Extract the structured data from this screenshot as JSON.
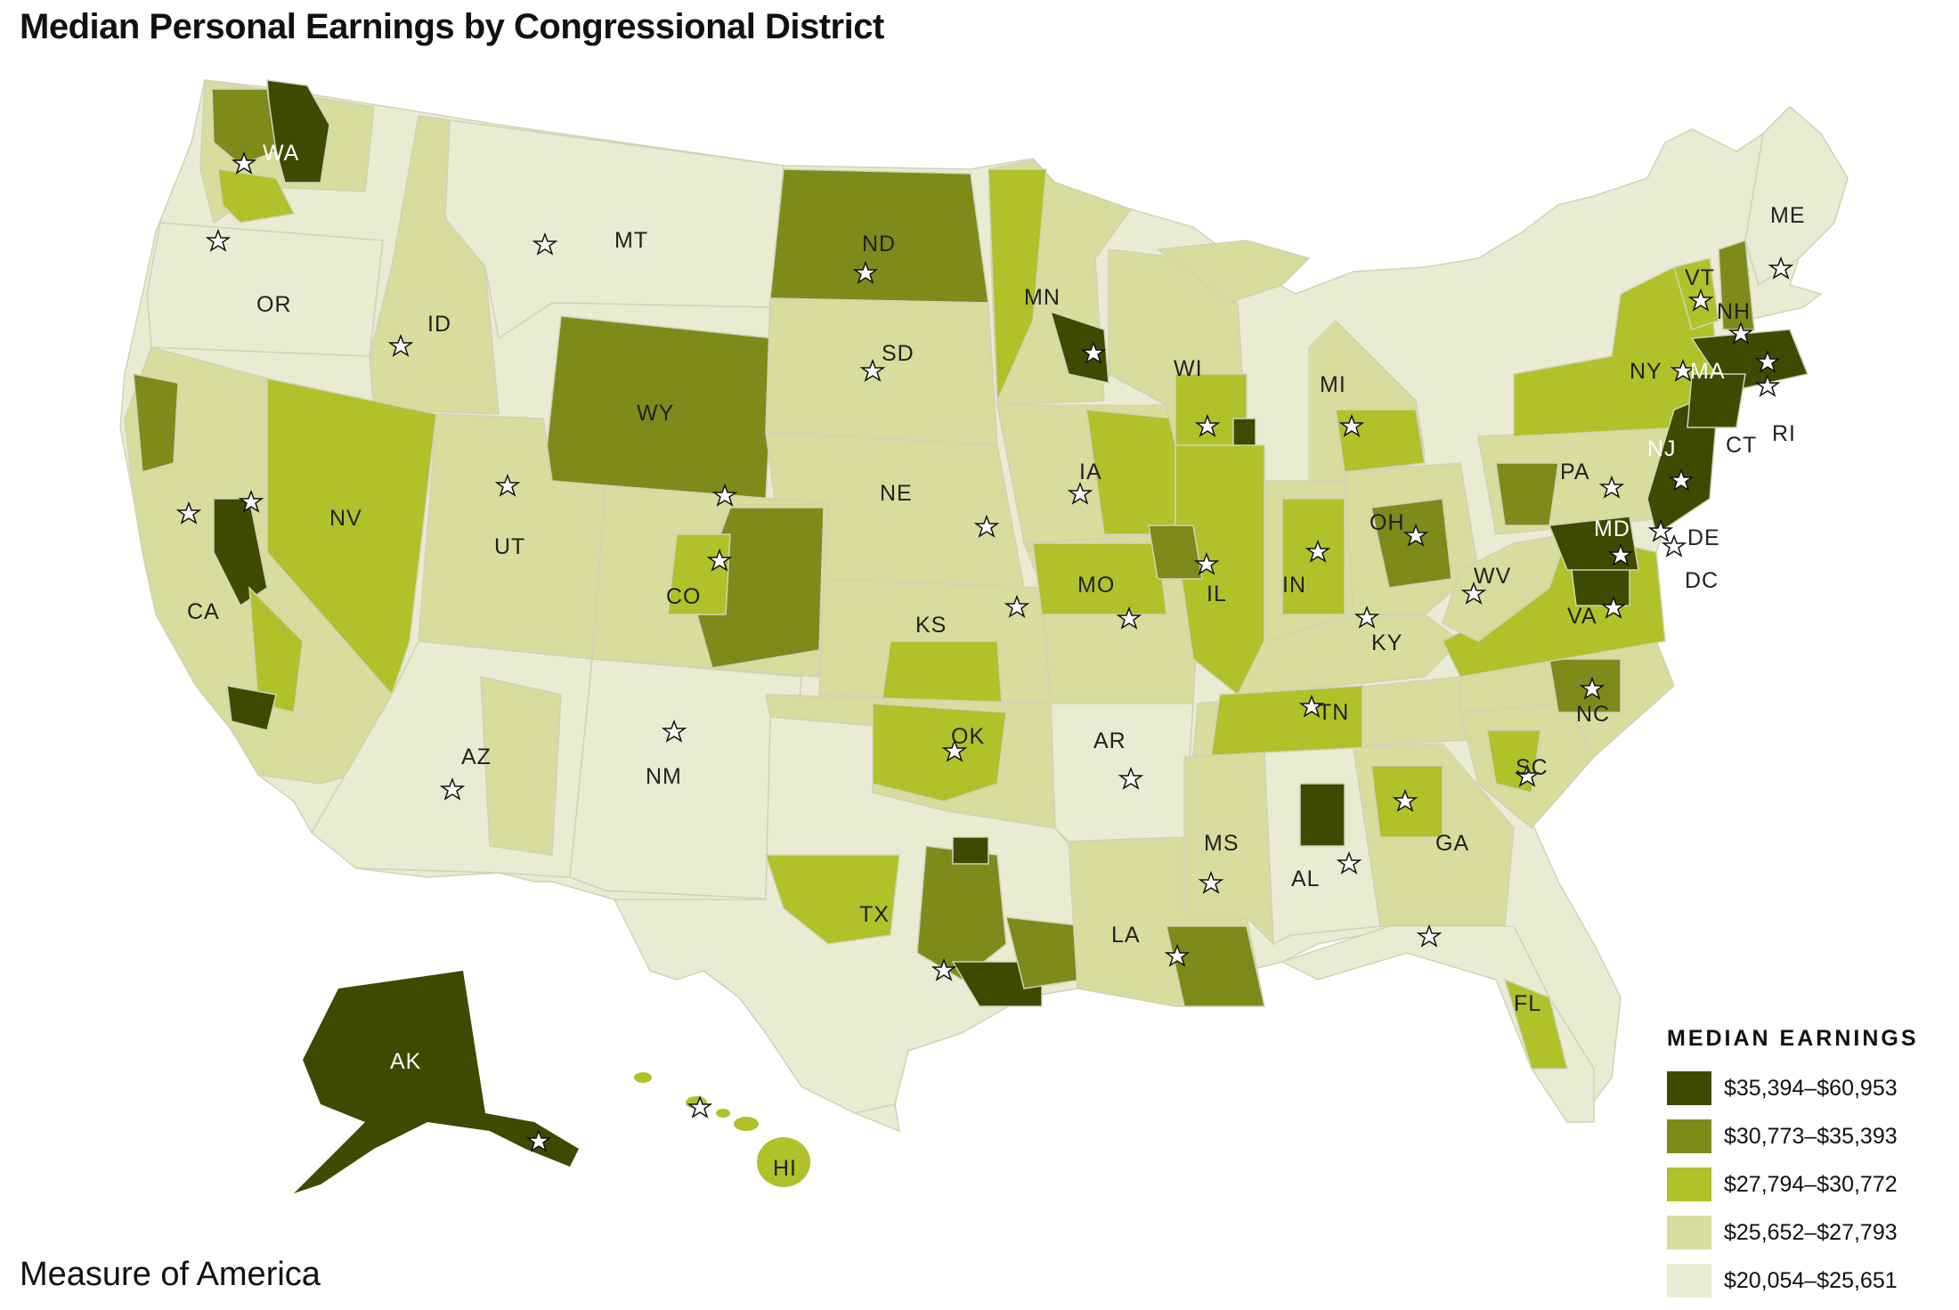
{
  "title": "Median Personal Earnings by Congressional District",
  "credit": "Measure of America",
  "legend": {
    "title": "MEDIAN EARNINGS",
    "items": [
      {
        "label": "$35,394–$60,953",
        "color": "#3d4a00"
      },
      {
        "label": "$30,773–$35,393",
        "color": "#7e8a1a"
      },
      {
        "label": "$27,794–$30,772",
        "color": "#b0c12a"
      },
      {
        "label": "$25,652–$27,793",
        "color": "#d8dc9c"
      },
      {
        "label": "$20,054–$25,651",
        "color": "#e9ecd2"
      }
    ]
  },
  "states": {
    "WA": "WA",
    "OR": "OR",
    "CA": "CA",
    "ID": "ID",
    "NV": "NV",
    "MT": "MT",
    "WY": "WY",
    "UT": "UT",
    "AZ": "AZ",
    "CO": "CO",
    "NM": "NM",
    "ND": "ND",
    "SD": "SD",
    "NE": "NE",
    "KS": "KS",
    "OK": "OK",
    "TX": "TX",
    "MN": "MN",
    "IA": "IA",
    "MO": "MO",
    "AR": "AR",
    "LA": "LA",
    "WI": "WI",
    "IL": "IL",
    "MI": "MI",
    "IN": "IN",
    "OH": "OH",
    "KY": "KY",
    "TN": "TN",
    "MS": "MS",
    "AL": "AL",
    "GA": "GA",
    "FL": "FL",
    "SC": "SC",
    "NC": "NC",
    "VA": "VA",
    "WV": "WV",
    "PA": "PA",
    "NY": "NY",
    "VT": "VT",
    "NH": "NH",
    "ME": "ME",
    "MA": "MA",
    "RI": "RI",
    "CT": "CT",
    "NJ": "NJ",
    "DE": "DE",
    "MD": "MD",
    "DC": "DC",
    "AK": "AK",
    "HI": "HI"
  }
}
